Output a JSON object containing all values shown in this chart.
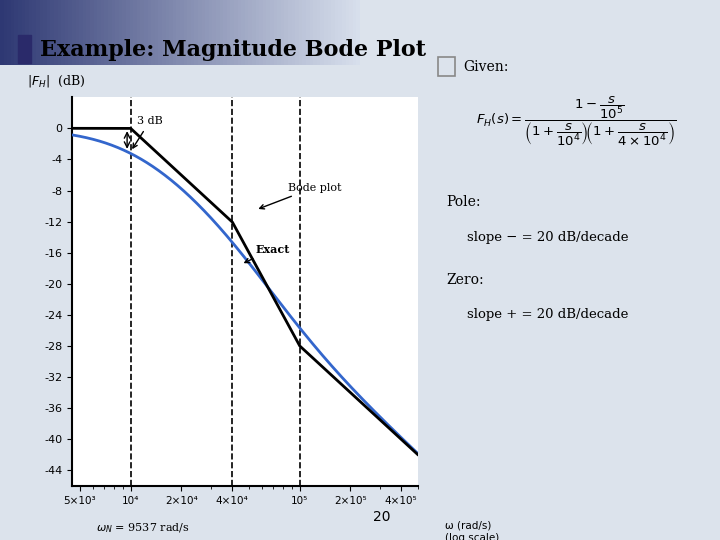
{
  "title": "Example: Magnitude Bode Plot",
  "title_bullet": true,
  "ylabel": "|F_H|  (dB)",
  "xlabel_text": "ω (rad/s)\n(log scale)",
  "freq_zero": 100000.0,
  "freq_pole1": 10000.0,
  "freq_pole2": 40000.0,
  "omega_N": 9537,
  "y_ticks": [
    0,
    -4,
    -8,
    -12,
    -16,
    -20,
    -24,
    -28,
    -32,
    -36,
    -40,
    -44
  ],
  "x_tick_labels": [
    "5×10³",
    "10⁴",
    "2×10⁴",
    "4×10⁴",
    "10⁵",
    "2×10⁵",
    "4×10⁵"
  ],
  "x_tick_values": [
    5000,
    10000,
    20000,
    40000,
    100000,
    200000,
    400000
  ],
  "dashed_verticals": [
    10000,
    40000,
    100000
  ],
  "bode_color": "#3366cc",
  "asymp_color": "#000000",
  "bg_color": "#ffffff",
  "slide_bg_top": "#4a5a8a",
  "slide_bg_bottom": "#c0c8d8",
  "annotation_fontsize": 9,
  "axis_fontsize": 9,
  "title_fontsize": 16,
  "page_number": "20",
  "formula_text": "Given:  F_H(s) = (1 - s/10^5) / [(1 + s/10^4)(1 + s/(4×10^4))]",
  "pole_text": "Pole:\n  slope − = 20 dB/decade\nZero:\n  slope + = 20 dB/decade"
}
